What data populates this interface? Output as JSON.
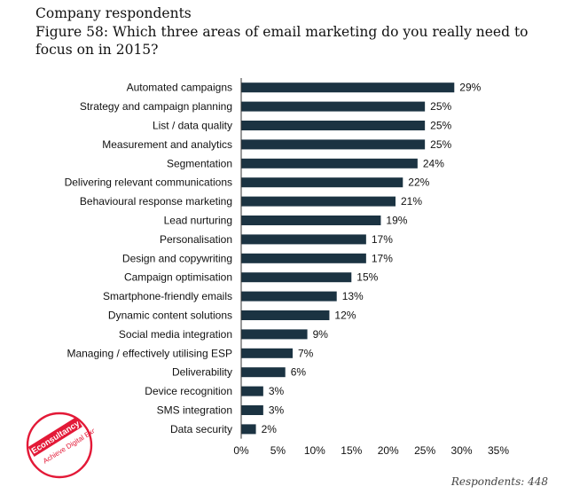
{
  "header": {
    "subtitle": "Company respondents",
    "title": "Figure 58: Which three areas of email marketing do you really need to focus on in 2015?"
  },
  "footer": {
    "respondents": "Respondents: 448"
  },
  "logo": {
    "text": "Econsultancy",
    "tagline": "Achieve Digital Excellence"
  },
  "colors": {
    "bar": "#1b3342",
    "logo": "#e31937"
  },
  "chart_data": {
    "type": "bar",
    "orientation": "horizontal",
    "title": "Figure 58: Which three areas of email marketing do you really need to focus on in 2015?",
    "categories": [
      "Automated campaigns",
      "Strategy and campaign planning",
      "List / data quality",
      "Measurement and analytics",
      "Segmentation",
      "Delivering relevant communications",
      "Behavioural response marketing",
      "Lead nurturing",
      "Personalisation",
      "Design and copywriting",
      "Campaign optimisation",
      "Smartphone-friendly emails",
      "Dynamic content solutions",
      "Social media integration",
      "Managing / effectively utilising ESP",
      "Deliverability",
      "Device recognition",
      "SMS integration",
      "Data security"
    ],
    "values": [
      29,
      25,
      25,
      25,
      24,
      22,
      21,
      19,
      17,
      17,
      15,
      13,
      12,
      9,
      7,
      6,
      3,
      3,
      2
    ],
    "value_labels": [
      "29%",
      "25%",
      "25%",
      "25%",
      "24%",
      "22%",
      "21%",
      "19%",
      "17%",
      "17%",
      "15%",
      "13%",
      "12%",
      "9%",
      "7%",
      "6%",
      "3%",
      "3%",
      "2%"
    ],
    "xlim": [
      0,
      35
    ],
    "xticks": [
      "0%",
      "5%",
      "10%",
      "15%",
      "20%",
      "25%",
      "30%",
      "35%"
    ],
    "xlabel": "",
    "ylabel": "",
    "grid": false
  }
}
